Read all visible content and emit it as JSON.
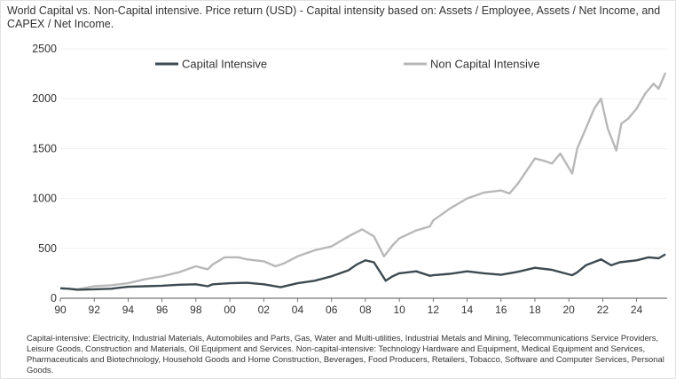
{
  "header": {
    "title": "World Capital vs. Non-Capital intensive. Price return (USD) - Capital intensity based on: Assets / Employee, Assets / Net Income, and CAPEX / Net Income."
  },
  "footnote": {
    "text": "Capital-intensive: Electricity, Industrial Materials, Automobiles and Parts, Gas, Water and Multi-utilities, Industrial Metals and Mining, Telecommunications Service Providers, Leisure Goods, Construction and Materials, Oil Equipment and Services. Non-capital-intensive: Technology Hardware and Equipment, Medical Equipment and Services, Pharmaceuticals and Biotechnology, Household Goods and Home Construction, Beverages, Food Producers, Retailers, Tobacco, Software and Computer Services, Personal Goods."
  },
  "colors": {
    "capital": "#3d4a52",
    "non_capital": "#b8b8b8",
    "axis": "#555555",
    "grid": "#e6e6e6"
  },
  "chart_data": {
    "type": "line",
    "title": "World Capital vs. Non-Capital intensive. Price return (USD)",
    "xlabel": "",
    "ylabel": "",
    "xlim": [
      1990,
      2025.8
    ],
    "ylim": [
      0,
      2500
    ],
    "yticks": [
      0,
      500,
      1000,
      1500,
      2000,
      2500
    ],
    "xticks": [
      1990,
      1992,
      1994,
      1996,
      1998,
      2000,
      2002,
      2004,
      2006,
      2008,
      2010,
      2012,
      2014,
      2016,
      2018,
      2020,
      2022,
      2024
    ],
    "xtick_labels": [
      "90",
      "92",
      "94",
      "96",
      "98",
      "00",
      "02",
      "04",
      "06",
      "08",
      "10",
      "12",
      "14",
      "16",
      "18",
      "20",
      "22",
      "24"
    ],
    "legend": "top-left",
    "series": [
      {
        "name": "Capital Intensive",
        "x": [
          1990,
          1990.5,
          1991,
          1992,
          1993,
          1994,
          1995,
          1996,
          1997,
          1998,
          1998.7,
          1999,
          2000,
          2001,
          2002,
          2003,
          2004,
          2005,
          2006,
          2007,
          2007.5,
          2008,
          2008.5,
          2009.2,
          2009.6,
          2010,
          2011,
          2011.8,
          2012,
          2013,
          2014,
          2015,
          2016,
          2017,
          2018,
          2019,
          2020.2,
          2020.5,
          2021,
          2021.9,
          2022.5,
          2023,
          2024,
          2024.7,
          2025.3,
          2025.7
        ],
        "y": [
          100,
          95,
          85,
          90,
          95,
          115,
          120,
          125,
          135,
          140,
          120,
          140,
          150,
          155,
          140,
          110,
          150,
          175,
          220,
          280,
          340,
          380,
          360,
          175,
          220,
          250,
          270,
          225,
          230,
          245,
          270,
          250,
          235,
          265,
          305,
          285,
          230,
          260,
          330,
          390,
          330,
          360,
          380,
          410,
          400,
          440
        ]
      },
      {
        "name": "Non Capital Intensive",
        "x": [
          1990,
          1991,
          1992,
          1993,
          1994,
          1995,
          1996,
          1997,
          1998,
          1998.7,
          1999,
          1999.7,
          2000.5,
          2001,
          2002,
          2002.7,
          2003.2,
          2004,
          2005,
          2006,
          2007,
          2007.8,
          2008.5,
          2009.1,
          2009.6,
          2010,
          2011,
          2011.8,
          2012,
          2013,
          2014,
          2015,
          2016,
          2016.5,
          2017,
          2018,
          2018.5,
          2019,
          2019.5,
          2020.2,
          2020.5,
          2021,
          2021.5,
          2021.9,
          2022.3,
          2022.8,
          2023.1,
          2023.5,
          2024,
          2024.5,
          2025,
          2025.3,
          2025.7
        ],
        "y": [
          100,
          90,
          120,
          130,
          150,
          190,
          220,
          260,
          320,
          290,
          340,
          410,
          410,
          390,
          370,
          320,
          350,
          420,
          480,
          520,
          620,
          690,
          620,
          420,
          530,
          600,
          680,
          720,
          780,
          900,
          1000,
          1060,
          1080,
          1050,
          1150,
          1400,
          1380,
          1350,
          1450,
          1250,
          1500,
          1700,
          1900,
          2000,
          1700,
          1480,
          1750,
          1800,
          1900,
          2050,
          2150,
          2100,
          2260
        ]
      }
    ]
  }
}
